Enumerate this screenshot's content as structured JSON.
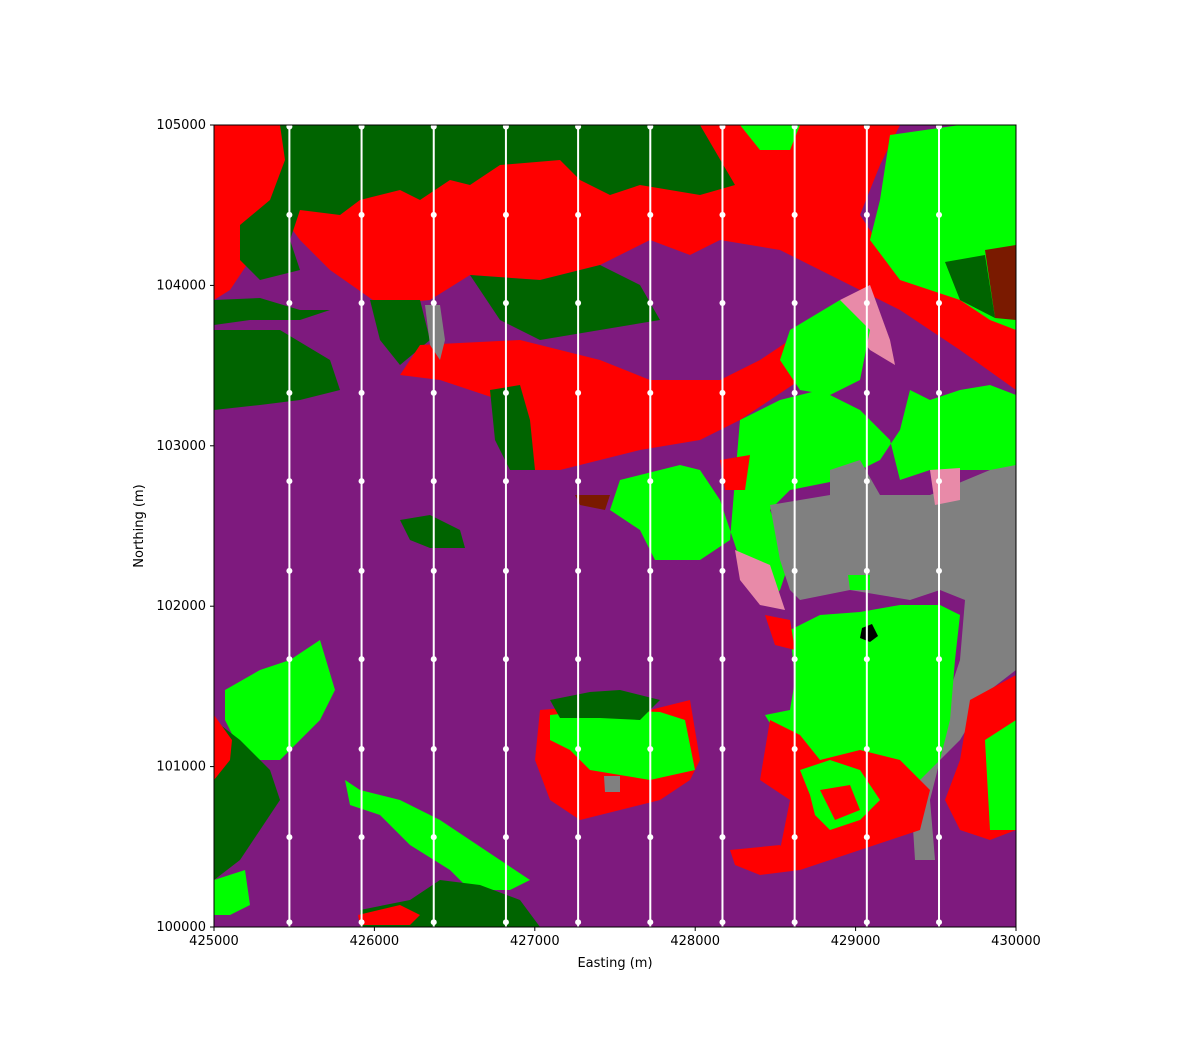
{
  "chart_data": {
    "type": "map",
    "xlabel": "Easting (m)",
    "ylabel": "Northing (m)",
    "xlim": [
      425000,
      430000
    ],
    "ylim": [
      100000,
      105000
    ],
    "x_ticks": [
      425000,
      426000,
      427000,
      428000,
      429000,
      430000
    ],
    "y_ticks": [
      100000,
      101000,
      102000,
      103000,
      104000,
      105000
    ],
    "x_tick_labels": [
      "425000",
      "426000",
      "427000",
      "428000",
      "429000",
      "430000"
    ],
    "y_tick_labels": [
      "100000",
      "101000",
      "102000",
      "103000",
      "104000",
      "105000"
    ],
    "survey_lines": {
      "color": "#ffffff",
      "x_positions": [
        425470,
        425920,
        426370,
        426820,
        427270,
        427720,
        428170,
        428620,
        429070,
        429520
      ],
      "station_northings": [
        100030,
        100560,
        101110,
        101670,
        102220,
        102780,
        103330,
        103890,
        104440,
        104990
      ]
    },
    "land_cover_colors": {
      "purple": "#7e1a7e",
      "red": "#ff0000",
      "dark_green": "#006400",
      "bright_green": "#00ff00",
      "gray": "#808080",
      "pink": "#e88aa8",
      "brown": "#7a1a00",
      "light_green": "#90ee90",
      "black": "#000000"
    },
    "grid": false,
    "legend": "none"
  }
}
